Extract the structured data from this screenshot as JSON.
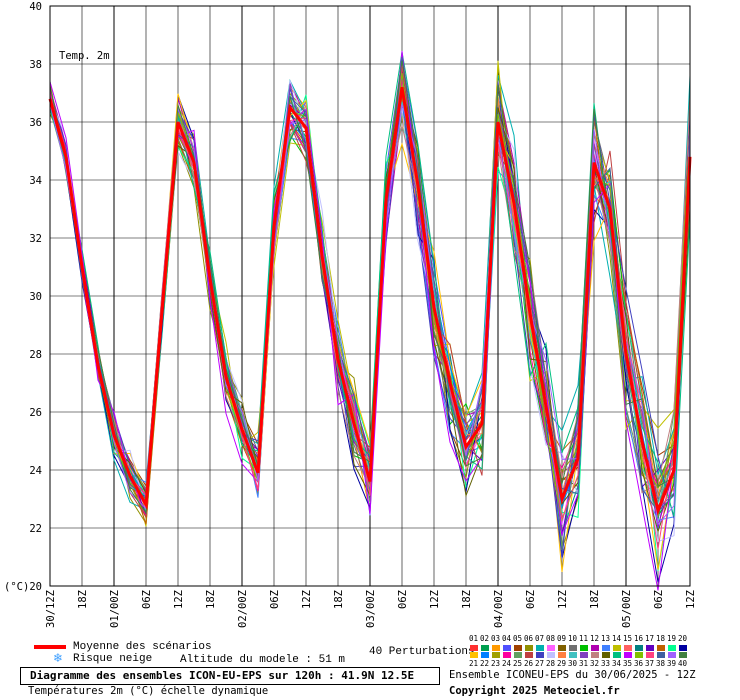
{
  "chart_data": {
    "type": "line",
    "title": "Temp. 2m",
    "unit_label": "(°C)",
    "ylim": [
      20,
      40
    ],
    "y_ticks": [
      20,
      22,
      24,
      26,
      28,
      30,
      32,
      34,
      36,
      38,
      40
    ],
    "x_tick_labels": [
      "30/12Z",
      "18Z",
      "01/00Z",
      "06Z",
      "12Z",
      "18Z",
      "02/00Z",
      "06Z",
      "12Z",
      "18Z",
      "03/00Z",
      "06Z",
      "12Z",
      "18Z",
      "04/00Z",
      "06Z",
      "12Z",
      "18Z",
      "05/00Z",
      "06Z",
      "12Z"
    ],
    "x_hours": [
      0,
      6,
      12,
      18,
      24,
      30,
      36,
      42,
      48,
      54,
      60,
      66,
      72,
      78,
      84,
      90,
      96,
      102,
      108,
      114,
      120
    ],
    "grid": true,
    "mean_series": {
      "name": "Moyenne des scénarios",
      "color": "#ff0000",
      "x": [
        0,
        3,
        6,
        9,
        12,
        15,
        18,
        21,
        24,
        27,
        30,
        33,
        36,
        39,
        42,
        45,
        48,
        51,
        54,
        57,
        60,
        63,
        66,
        69,
        72,
        75,
        78,
        81,
        84,
        87,
        90,
        93,
        96,
        99,
        102,
        105,
        108,
        111,
        114,
        117,
        120
      ],
      "values": [
        36.8,
        34.8,
        31.0,
        27.6,
        25.2,
        23.8,
        22.8,
        29.5,
        36.0,
        34.6,
        30.6,
        27.2,
        25.4,
        23.9,
        32.4,
        36.5,
        35.8,
        31.4,
        27.8,
        25.6,
        23.6,
        33.3,
        37.2,
        33.8,
        29.6,
        27.0,
        24.8,
        25.6,
        36.0,
        33.2,
        29.4,
        26.2,
        23.0,
        24.4,
        34.6,
        33.0,
        28.0,
        25.0,
        22.6,
        24.0,
        34.8
      ]
    }
  },
  "legend": {
    "mean_label": "Moyenne des scénarios",
    "snow_label": "Risque neige",
    "altitude_label": "Altitude du modele : 51 m",
    "perturbations_label": "40 Perturbations",
    "member_numbers_top": [
      "01",
      "02",
      "03",
      "04",
      "05",
      "06",
      "07",
      "08",
      "09",
      "10",
      "11",
      "12",
      "13",
      "14",
      "15",
      "16",
      "17",
      "18",
      "19",
      "20"
    ],
    "member_numbers_bottom": [
      "21",
      "22",
      "23",
      "24",
      "25",
      "26",
      "27",
      "28",
      "29",
      "30",
      "31",
      "32",
      "33",
      "34",
      "35",
      "36",
      "37",
      "38",
      "39",
      "40"
    ],
    "member_colors_top": [
      "#ff3030",
      "#00a050",
      "#ff9a00",
      "#5050ff",
      "#a04000",
      "#909000",
      "#00b0b0",
      "#ff60ff",
      "#806000",
      "#707070",
      "#00c000",
      "#b000b0",
      "#4080ff",
      "#c0c000",
      "#ff6060",
      "#008080",
      "#6000c0",
      "#c06000",
      "#00ff90",
      "#0000a0"
    ],
    "member_colors_bottom": [
      "#ffc000",
      "#0080ff",
      "#a0a000",
      "#ff00a0",
      "#60a060",
      "#c04040",
      "#4040c0",
      "#c0c0ff",
      "#ff8040",
      "#40c0c0",
      "#8040c0",
      "#c08080",
      "#606000",
      "#00c080",
      "#c000ff",
      "#80c000",
      "#ff4080",
      "#4060a0",
      "#a060ff",
      "#408040"
    ]
  },
  "footer": {
    "main": "Diagramme des ensembles ICON-EU-EPS sur 120h : 41.9N 12.5E",
    "sub": "Températures 2m (°C) échelle dynamique",
    "run": "Ensemble ICONEU-EPS du 30/06/2025 - 12Z",
    "copyright": "Copyright 2025 Meteociel.fr"
  },
  "icons": {
    "snow": "snowflake-icon"
  }
}
